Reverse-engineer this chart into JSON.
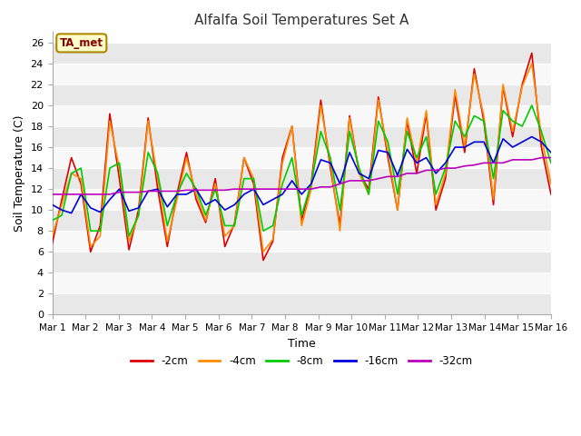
{
  "title": "Alfalfa Soil Temperatures Set A",
  "xlabel": "Time",
  "ylabel": "Soil Temperature (C)",
  "annotation": "TA_met",
  "ylim": [
    0,
    27
  ],
  "yticks": [
    0,
    2,
    4,
    6,
    8,
    10,
    12,
    14,
    16,
    18,
    20,
    22,
    24,
    26
  ],
  "xtick_labels": [
    "Mar 1",
    "Mar 2",
    "Mar 3",
    "Mar 4",
    "Mar 5",
    "Mar 6",
    "Mar 7",
    "Mar 8",
    "Mar 9",
    "Mar 10",
    "Mar 11",
    "Mar 12",
    "Mar 13",
    "Mar 14",
    "Mar 15",
    "Mar 16"
  ],
  "colors": {
    "-2cm": "#dd0000",
    "-4cm": "#ff8c00",
    "-8cm": "#00cc00",
    "-16cm": "#0000dd",
    "-32cm": "#bb00bb"
  },
  "figure_bg": "#ffffff",
  "plot_bg": "#ffffff",
  "band_color_dark": "#e8e8e8",
  "band_color_light": "#f8f8f8",
  "depth_2cm": [
    6.8,
    11.0,
    15.0,
    12.5,
    6.0,
    8.5,
    19.2,
    13.0,
    6.2,
    10.0,
    18.8,
    12.0,
    6.5,
    11.5,
    15.5,
    11.0,
    8.8,
    13.0,
    6.5,
    8.7,
    15.0,
    12.5,
    5.2,
    7.0,
    15.0,
    18.0,
    9.0,
    12.5,
    20.5,
    14.0,
    8.5,
    19.0,
    13.5,
    12.0,
    20.8,
    15.0,
    10.0,
    18.5,
    13.5,
    19.2,
    10.0,
    13.0,
    21.0,
    15.5,
    23.5,
    18.5,
    10.5,
    21.8,
    17.0,
    22.0,
    25.0,
    16.0,
    11.5
  ],
  "depth_4cm": [
    7.5,
    10.5,
    13.5,
    13.0,
    6.5,
    7.5,
    18.5,
    14.0,
    7.0,
    9.5,
    18.5,
    13.0,
    7.0,
    11.0,
    15.0,
    11.5,
    9.0,
    12.5,
    7.5,
    8.5,
    15.0,
    13.0,
    6.0,
    7.2,
    14.5,
    18.0,
    8.5,
    12.0,
    20.0,
    14.5,
    8.0,
    18.8,
    13.5,
    11.5,
    20.5,
    15.5,
    10.0,
    18.8,
    14.5,
    19.5,
    10.5,
    13.5,
    21.5,
    16.0,
    23.0,
    19.0,
    11.0,
    22.0,
    17.5,
    21.8,
    24.0,
    17.0,
    12.5
  ],
  "depth_8cm": [
    9.0,
    9.5,
    13.5,
    14.0,
    8.0,
    8.0,
    14.0,
    14.5,
    7.5,
    9.5,
    15.5,
    13.5,
    8.5,
    11.5,
    13.5,
    12.0,
    9.5,
    12.0,
    8.5,
    8.5,
    13.0,
    13.0,
    8.0,
    8.5,
    12.5,
    15.0,
    9.5,
    12.5,
    17.5,
    15.0,
    10.0,
    17.5,
    14.0,
    11.5,
    18.5,
    16.5,
    11.5,
    17.5,
    15.0,
    17.0,
    11.5,
    14.0,
    18.5,
    17.0,
    19.0,
    18.5,
    13.0,
    19.5,
    18.5,
    18.0,
    20.0,
    17.5,
    14.5
  ],
  "depth_16cm": [
    10.5,
    10.0,
    9.7,
    11.5,
    10.2,
    9.8,
    11.0,
    12.0,
    9.9,
    10.2,
    11.8,
    12.0,
    10.3,
    11.5,
    11.5,
    12.0,
    10.5,
    11.0,
    10.0,
    10.5,
    11.5,
    12.0,
    10.5,
    11.0,
    11.5,
    12.8,
    11.5,
    12.5,
    14.8,
    14.5,
    12.5,
    15.5,
    13.5,
    13.0,
    15.7,
    15.5,
    13.3,
    15.8,
    14.5,
    15.0,
    13.5,
    14.5,
    16.0,
    16.0,
    16.5,
    16.5,
    14.5,
    16.8,
    16.0,
    16.5,
    17.0,
    16.5,
    15.5
  ],
  "depth_32cm": [
    11.5,
    11.5,
    11.5,
    11.5,
    11.5,
    11.5,
    11.5,
    11.7,
    11.7,
    11.7,
    11.8,
    11.8,
    11.8,
    11.8,
    11.9,
    11.9,
    11.9,
    11.9,
    11.9,
    12.0,
    12.0,
    12.0,
    12.0,
    12.0,
    12.0,
    12.0,
    12.0,
    12.0,
    12.2,
    12.2,
    12.5,
    12.8,
    12.8,
    12.8,
    13.0,
    13.2,
    13.2,
    13.5,
    13.5,
    13.8,
    13.8,
    14.0,
    14.0,
    14.2,
    14.3,
    14.5,
    14.5,
    14.5,
    14.8,
    14.8,
    14.8,
    15.0,
    15.0
  ]
}
